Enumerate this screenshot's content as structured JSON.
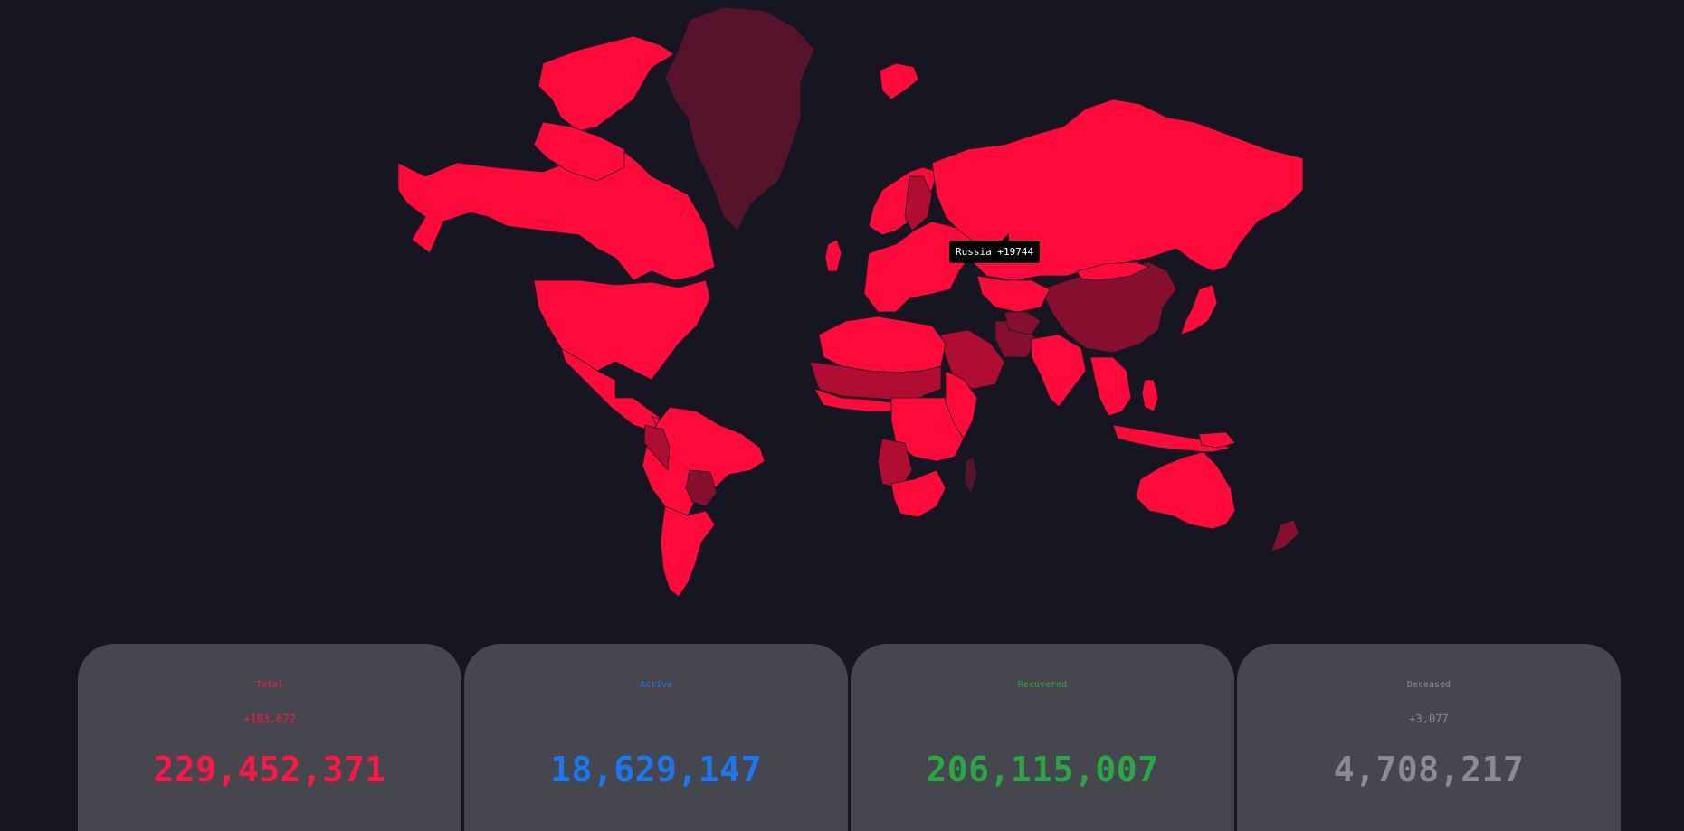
{
  "map": {
    "tooltip": "Russia +19744",
    "colors": {
      "background": "#161623",
      "high": "#ff0a3b",
      "medium": "#b00d33",
      "low": "#860f30",
      "lowest": "#55142c",
      "border": "#161623"
    }
  },
  "stats": [
    {
      "label": "Total",
      "delta": "+183,672",
      "value": "229,452,371",
      "color": "#ff1646"
    },
    {
      "label": "Active",
      "delta": "",
      "value": "18,629,147",
      "color": "#1a77f2"
    },
    {
      "label": "Recovered",
      "delta": "",
      "value": "206,115,007",
      "color": "#29a745"
    },
    {
      "label": "Deceased",
      "delta": "+3,077",
      "value": "4,708,217",
      "color": "#8b8b92"
    }
  ]
}
